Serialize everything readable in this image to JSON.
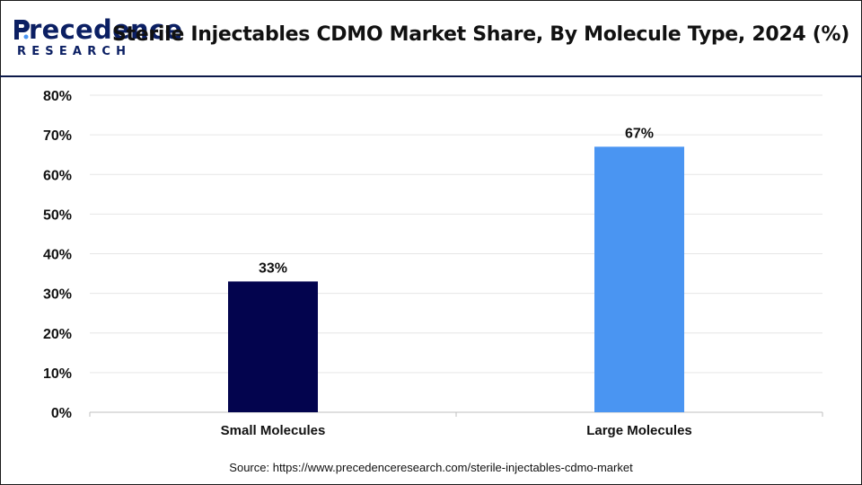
{
  "header": {
    "logo_main": "recedence",
    "logo_sub": "RESEARCH",
    "title": "Sterile Injectables CDMO Market Share, By Molecule Type, 2024 (%)"
  },
  "source": "Source: https://www.precedenceresearch.com/sterile-injectables-cdmo-market",
  "colors": {
    "brand": "#0b1f63",
    "small_molecules": "#03044e",
    "large_molecules": "#4a95f2",
    "grid": "#e6e6e6"
  },
  "chart_data": {
    "type": "bar",
    "categories": [
      "Small Molecules",
      "Large Molecules"
    ],
    "values": [
      33,
      67
    ],
    "data_labels": [
      "33%",
      "67%"
    ],
    "ylim": [
      0,
      80
    ],
    "yticks": [
      "0%",
      "10%",
      "20%",
      "30%",
      "40%",
      "50%",
      "60%",
      "70%",
      "80%"
    ],
    "xlabel": "",
    "ylabel": "",
    "grid": true,
    "bar_colors": [
      "#03044e",
      "#4a95f2"
    ]
  }
}
